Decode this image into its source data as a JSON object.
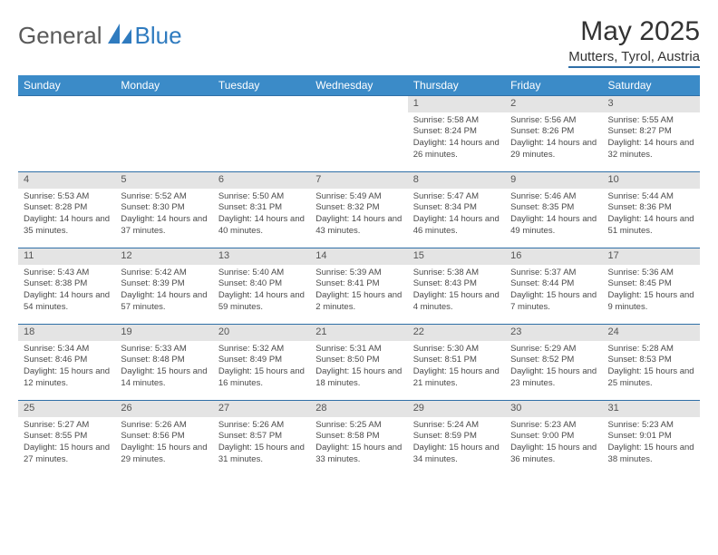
{
  "brand": {
    "general": "General",
    "blue": "Blue"
  },
  "title": "May 2025",
  "subtitle": "Mutters, Tyrol, Austria",
  "colors": {
    "header_bg": "#3b8bc8",
    "header_text": "#ffffff",
    "daynum_bg": "#e4e4e4",
    "rule": "#2f6fa7",
    "body_text": "#4a4a4a",
    "logo_gray": "#5a5a5a",
    "logo_blue": "#2f7bbf"
  },
  "weekdays": [
    "Sunday",
    "Monday",
    "Tuesday",
    "Wednesday",
    "Thursday",
    "Friday",
    "Saturday"
  ],
  "weeks": [
    [
      null,
      null,
      null,
      null,
      {
        "n": "1",
        "sr": "5:58 AM",
        "ss": "8:24 PM",
        "dl": "14 hours and 26 minutes."
      },
      {
        "n": "2",
        "sr": "5:56 AM",
        "ss": "8:26 PM",
        "dl": "14 hours and 29 minutes."
      },
      {
        "n": "3",
        "sr": "5:55 AM",
        "ss": "8:27 PM",
        "dl": "14 hours and 32 minutes."
      }
    ],
    [
      {
        "n": "4",
        "sr": "5:53 AM",
        "ss": "8:28 PM",
        "dl": "14 hours and 35 minutes."
      },
      {
        "n": "5",
        "sr": "5:52 AM",
        "ss": "8:30 PM",
        "dl": "14 hours and 37 minutes."
      },
      {
        "n": "6",
        "sr": "5:50 AM",
        "ss": "8:31 PM",
        "dl": "14 hours and 40 minutes."
      },
      {
        "n": "7",
        "sr": "5:49 AM",
        "ss": "8:32 PM",
        "dl": "14 hours and 43 minutes."
      },
      {
        "n": "8",
        "sr": "5:47 AM",
        "ss": "8:34 PM",
        "dl": "14 hours and 46 minutes."
      },
      {
        "n": "9",
        "sr": "5:46 AM",
        "ss": "8:35 PM",
        "dl": "14 hours and 49 minutes."
      },
      {
        "n": "10",
        "sr": "5:44 AM",
        "ss": "8:36 PM",
        "dl": "14 hours and 51 minutes."
      }
    ],
    [
      {
        "n": "11",
        "sr": "5:43 AM",
        "ss": "8:38 PM",
        "dl": "14 hours and 54 minutes."
      },
      {
        "n": "12",
        "sr": "5:42 AM",
        "ss": "8:39 PM",
        "dl": "14 hours and 57 minutes."
      },
      {
        "n": "13",
        "sr": "5:40 AM",
        "ss": "8:40 PM",
        "dl": "14 hours and 59 minutes."
      },
      {
        "n": "14",
        "sr": "5:39 AM",
        "ss": "8:41 PM",
        "dl": "15 hours and 2 minutes."
      },
      {
        "n": "15",
        "sr": "5:38 AM",
        "ss": "8:43 PM",
        "dl": "15 hours and 4 minutes."
      },
      {
        "n": "16",
        "sr": "5:37 AM",
        "ss": "8:44 PM",
        "dl": "15 hours and 7 minutes."
      },
      {
        "n": "17",
        "sr": "5:36 AM",
        "ss": "8:45 PM",
        "dl": "15 hours and 9 minutes."
      }
    ],
    [
      {
        "n": "18",
        "sr": "5:34 AM",
        "ss": "8:46 PM",
        "dl": "15 hours and 12 minutes."
      },
      {
        "n": "19",
        "sr": "5:33 AM",
        "ss": "8:48 PM",
        "dl": "15 hours and 14 minutes."
      },
      {
        "n": "20",
        "sr": "5:32 AM",
        "ss": "8:49 PM",
        "dl": "15 hours and 16 minutes."
      },
      {
        "n": "21",
        "sr": "5:31 AM",
        "ss": "8:50 PM",
        "dl": "15 hours and 18 minutes."
      },
      {
        "n": "22",
        "sr": "5:30 AM",
        "ss": "8:51 PM",
        "dl": "15 hours and 21 minutes."
      },
      {
        "n": "23",
        "sr": "5:29 AM",
        "ss": "8:52 PM",
        "dl": "15 hours and 23 minutes."
      },
      {
        "n": "24",
        "sr": "5:28 AM",
        "ss": "8:53 PM",
        "dl": "15 hours and 25 minutes."
      }
    ],
    [
      {
        "n": "25",
        "sr": "5:27 AM",
        "ss": "8:55 PM",
        "dl": "15 hours and 27 minutes."
      },
      {
        "n": "26",
        "sr": "5:26 AM",
        "ss": "8:56 PM",
        "dl": "15 hours and 29 minutes."
      },
      {
        "n": "27",
        "sr": "5:26 AM",
        "ss": "8:57 PM",
        "dl": "15 hours and 31 minutes."
      },
      {
        "n": "28",
        "sr": "5:25 AM",
        "ss": "8:58 PM",
        "dl": "15 hours and 33 minutes."
      },
      {
        "n": "29",
        "sr": "5:24 AM",
        "ss": "8:59 PM",
        "dl": "15 hours and 34 minutes."
      },
      {
        "n": "30",
        "sr": "5:23 AM",
        "ss": "9:00 PM",
        "dl": "15 hours and 36 minutes."
      },
      {
        "n": "31",
        "sr": "5:23 AM",
        "ss": "9:01 PM",
        "dl": "15 hours and 38 minutes."
      }
    ]
  ],
  "labels": {
    "sunrise": "Sunrise: ",
    "sunset": "Sunset: ",
    "daylight": "Daylight: "
  }
}
